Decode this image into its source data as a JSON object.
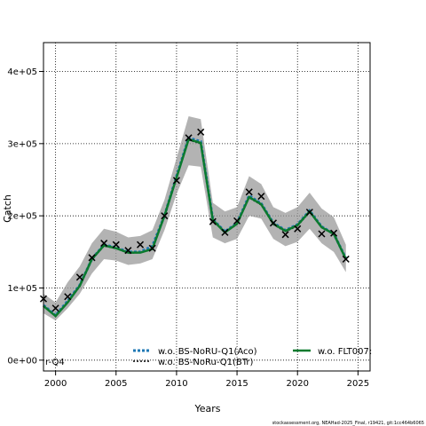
{
  "chart_data": {
    "type": "line",
    "xlabel": "Years",
    "ylabel": "Catch",
    "xlim": [
      1999,
      2026
    ],
    "ylim": [
      -15000,
      440000
    ],
    "x_ticks": [
      2000,
      2005,
      2010,
      2015,
      2020,
      2025
    ],
    "y_ticks": [
      {
        "value": 0,
        "label": "0e+00"
      },
      {
        "value": 100000,
        "label": "1e+05"
      },
      {
        "value": 200000,
        "label": "2e+05"
      },
      {
        "value": 300000,
        "label": "3e+05"
      },
      {
        "value": 400000,
        "label": "4e+05"
      }
    ],
    "grid": true,
    "years": [
      1999,
      2000,
      2001,
      2002,
      2003,
      2004,
      2005,
      2006,
      2007,
      2008,
      2009,
      2010,
      2011,
      2012,
      2013,
      2014,
      2015,
      2016,
      2017,
      2018,
      2019,
      2020,
      2021,
      2022,
      2023,
      2024
    ],
    "observed": [
      85000,
      72000,
      88000,
      115000,
      142000,
      162000,
      160000,
      152000,
      160000,
      155000,
      200000,
      249000,
      308000,
      316000,
      192000,
      177000,
      193000,
      233000,
      227000,
      190000,
      174000,
      182000,
      205000,
      175000,
      176000,
      140000
    ],
    "ci_band": {
      "lower": [
        65000,
        55000,
        72000,
        92000,
        120000,
        140000,
        138000,
        132000,
        134000,
        140000,
        180000,
        230000,
        270000,
        268000,
        170000,
        162000,
        168000,
        200000,
        196000,
        168000,
        158000,
        164000,
        182000,
        162000,
        150000,
        122000
      ],
      "upper": [
        92000,
        80000,
        108000,
        130000,
        162000,
        182000,
        178000,
        170000,
        172000,
        180000,
        222000,
        280000,
        338000,
        334000,
        218000,
        206000,
        212000,
        255000,
        244000,
        212000,
        204000,
        212000,
        232000,
        210000,
        198000,
        160000
      ]
    },
    "series": [
      {
        "name": "w.o. BS-NoRU-Q1(Aco)",
        "color": "#1f78b4",
        "dash": "3,2",
        "values": [
          76000,
          62000,
          82000,
          104000,
          140000,
          160000,
          156000,
          150000,
          150000,
          158000,
          200000,
          255000,
          308000,
          303000,
          195000,
          178000,
          190000,
          228000,
          217000,
          190000,
          180000,
          188000,
          207000,
          185000,
          175000,
          141000
        ]
      },
      {
        "name": "w.o. BS-NoRu-Q1(BTr)",
        "color": "#000000",
        "dash": "2,2",
        "values": [
          75000,
          61000,
          80000,
          102000,
          139000,
          158000,
          155000,
          148000,
          149000,
          155000,
          199000,
          252000,
          305000,
          300000,
          193000,
          177000,
          188000,
          225000,
          215000,
          188000,
          178000,
          186000,
          205000,
          184000,
          174000,
          140000
        ]
      },
      {
        "name": "w.o. FLT007:",
        "color": "#0b7a2e",
        "dash": "",
        "values": [
          75000,
          61000,
          80000,
          103000,
          140000,
          159000,
          155000,
          149000,
          149000,
          154000,
          200000,
          253000,
          306000,
          301000,
          194000,
          177000,
          189000,
          226000,
          216000,
          189000,
          179000,
          187000,
          206000,
          184000,
          175000,
          140000
        ]
      }
    ],
    "truncated_legend_fragment": "r-Q4"
  },
  "footer": "stockassessment.org, NEAHad-2025_Final, r19421, git:1cc464b6065"
}
